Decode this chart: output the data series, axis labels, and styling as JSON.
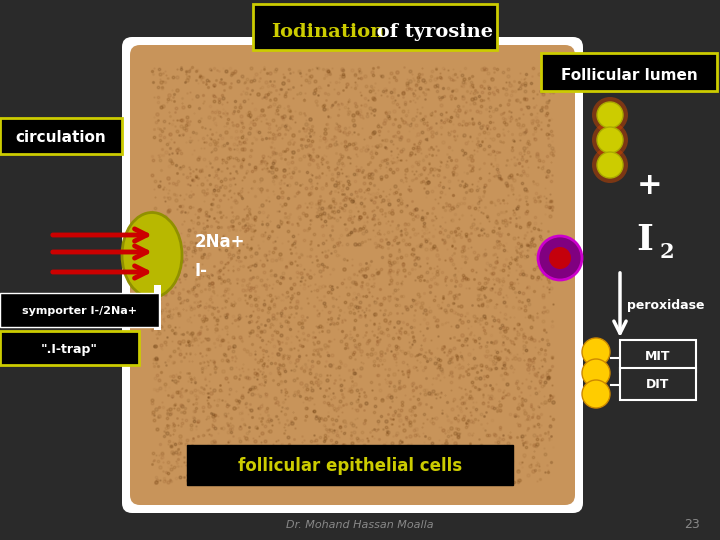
{
  "bg_color": "#2a2a2a",
  "cell_bg_color": "#c8945a",
  "cell_border_color": "#ffffff",
  "title_text": "Iodination of tyrosine",
  "title_iodination": "Iodination",
  "title_rest": " of tyrosine",
  "title_bg": "#000000",
  "title_border": "#cccc00",
  "title_iodination_color": "#cccc00",
  "title_rest_color": "#ffffff",
  "follicular_lumen_label": "Follicular lumen",
  "follicular_lumen_bg": "#000000",
  "follicular_lumen_border": "#cccc00",
  "follicular_lumen_text": "#ffffff",
  "circulation_label": "circulation",
  "circulation_bg": "#000000",
  "circulation_border": "#cccc00",
  "circulation_text": "#ffffff",
  "cell_label": "follicular epithelial cells",
  "cell_label_bg": "#000000",
  "cell_label_text": "#cccc00",
  "symporter_label": "symporter I-/2Na+",
  "symporter_bg": "#000000",
  "symporter_text": "#ffffff",
  "itrap_label": "\".I-trap\"",
  "itrap_bg": "#000000",
  "itrap_text": "#ffffff",
  "itrap_border": "#cccc00",
  "na_label": "2Na+",
  "i_label": "I-",
  "plus_label": "+",
  "peroxidase_label": "peroxidase",
  "mit_label": "MIT",
  "dit_label": "DIT",
  "footer_text": "Dr. Mohand Hassan Moalla",
  "page_num": "23",
  "arrow_color": "#cc0000"
}
